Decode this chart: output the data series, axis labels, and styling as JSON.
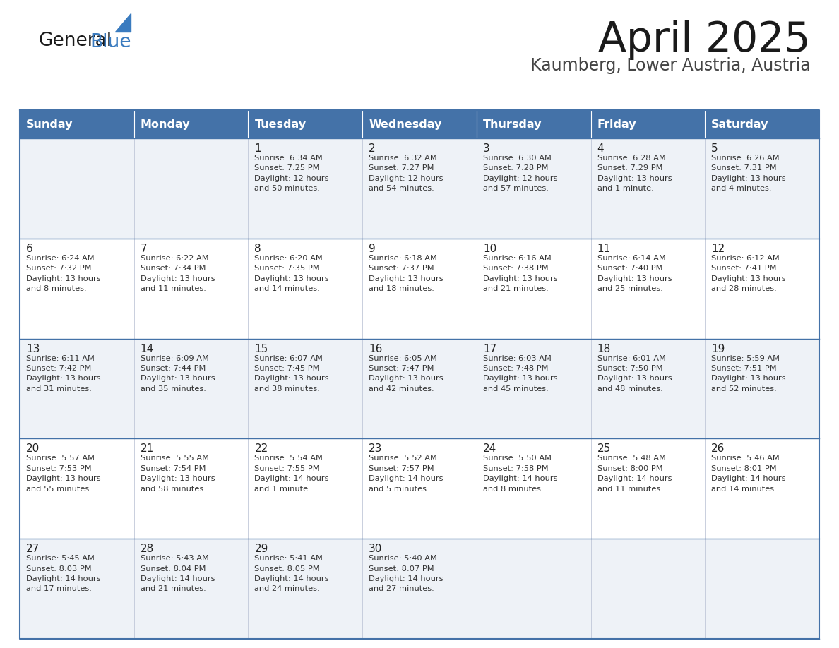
{
  "title": "April 2025",
  "subtitle": "Kaumberg, Lower Austria, Austria",
  "header_bg": "#4472a8",
  "header_text_color": "#ffffff",
  "day_names": [
    "Sunday",
    "Monday",
    "Tuesday",
    "Wednesday",
    "Thursday",
    "Friday",
    "Saturday"
  ],
  "row_bg_even": "#eef2f7",
  "row_bg_odd": "#ffffff",
  "cell_border_color": "#4472a8",
  "day_number_color": "#222222",
  "day_text_color": "#333333",
  "weeks": [
    [
      {
        "day": null,
        "text": ""
      },
      {
        "day": null,
        "text": ""
      },
      {
        "day": 1,
        "text": "Sunrise: 6:34 AM\nSunset: 7:25 PM\nDaylight: 12 hours\nand 50 minutes."
      },
      {
        "day": 2,
        "text": "Sunrise: 6:32 AM\nSunset: 7:27 PM\nDaylight: 12 hours\nand 54 minutes."
      },
      {
        "day": 3,
        "text": "Sunrise: 6:30 AM\nSunset: 7:28 PM\nDaylight: 12 hours\nand 57 minutes."
      },
      {
        "day": 4,
        "text": "Sunrise: 6:28 AM\nSunset: 7:29 PM\nDaylight: 13 hours\nand 1 minute."
      },
      {
        "day": 5,
        "text": "Sunrise: 6:26 AM\nSunset: 7:31 PM\nDaylight: 13 hours\nand 4 minutes."
      }
    ],
    [
      {
        "day": 6,
        "text": "Sunrise: 6:24 AM\nSunset: 7:32 PM\nDaylight: 13 hours\nand 8 minutes."
      },
      {
        "day": 7,
        "text": "Sunrise: 6:22 AM\nSunset: 7:34 PM\nDaylight: 13 hours\nand 11 minutes."
      },
      {
        "day": 8,
        "text": "Sunrise: 6:20 AM\nSunset: 7:35 PM\nDaylight: 13 hours\nand 14 minutes."
      },
      {
        "day": 9,
        "text": "Sunrise: 6:18 AM\nSunset: 7:37 PM\nDaylight: 13 hours\nand 18 minutes."
      },
      {
        "day": 10,
        "text": "Sunrise: 6:16 AM\nSunset: 7:38 PM\nDaylight: 13 hours\nand 21 minutes."
      },
      {
        "day": 11,
        "text": "Sunrise: 6:14 AM\nSunset: 7:40 PM\nDaylight: 13 hours\nand 25 minutes."
      },
      {
        "day": 12,
        "text": "Sunrise: 6:12 AM\nSunset: 7:41 PM\nDaylight: 13 hours\nand 28 minutes."
      }
    ],
    [
      {
        "day": 13,
        "text": "Sunrise: 6:11 AM\nSunset: 7:42 PM\nDaylight: 13 hours\nand 31 minutes."
      },
      {
        "day": 14,
        "text": "Sunrise: 6:09 AM\nSunset: 7:44 PM\nDaylight: 13 hours\nand 35 minutes."
      },
      {
        "day": 15,
        "text": "Sunrise: 6:07 AM\nSunset: 7:45 PM\nDaylight: 13 hours\nand 38 minutes."
      },
      {
        "day": 16,
        "text": "Sunrise: 6:05 AM\nSunset: 7:47 PM\nDaylight: 13 hours\nand 42 minutes."
      },
      {
        "day": 17,
        "text": "Sunrise: 6:03 AM\nSunset: 7:48 PM\nDaylight: 13 hours\nand 45 minutes."
      },
      {
        "day": 18,
        "text": "Sunrise: 6:01 AM\nSunset: 7:50 PM\nDaylight: 13 hours\nand 48 minutes."
      },
      {
        "day": 19,
        "text": "Sunrise: 5:59 AM\nSunset: 7:51 PM\nDaylight: 13 hours\nand 52 minutes."
      }
    ],
    [
      {
        "day": 20,
        "text": "Sunrise: 5:57 AM\nSunset: 7:53 PM\nDaylight: 13 hours\nand 55 minutes."
      },
      {
        "day": 21,
        "text": "Sunrise: 5:55 AM\nSunset: 7:54 PM\nDaylight: 13 hours\nand 58 minutes."
      },
      {
        "day": 22,
        "text": "Sunrise: 5:54 AM\nSunset: 7:55 PM\nDaylight: 14 hours\nand 1 minute."
      },
      {
        "day": 23,
        "text": "Sunrise: 5:52 AM\nSunset: 7:57 PM\nDaylight: 14 hours\nand 5 minutes."
      },
      {
        "day": 24,
        "text": "Sunrise: 5:50 AM\nSunset: 7:58 PM\nDaylight: 14 hours\nand 8 minutes."
      },
      {
        "day": 25,
        "text": "Sunrise: 5:48 AM\nSunset: 8:00 PM\nDaylight: 14 hours\nand 11 minutes."
      },
      {
        "day": 26,
        "text": "Sunrise: 5:46 AM\nSunset: 8:01 PM\nDaylight: 14 hours\nand 14 minutes."
      }
    ],
    [
      {
        "day": 27,
        "text": "Sunrise: 5:45 AM\nSunset: 8:03 PM\nDaylight: 14 hours\nand 17 minutes."
      },
      {
        "day": 28,
        "text": "Sunrise: 5:43 AM\nSunset: 8:04 PM\nDaylight: 14 hours\nand 21 minutes."
      },
      {
        "day": 29,
        "text": "Sunrise: 5:41 AM\nSunset: 8:05 PM\nDaylight: 14 hours\nand 24 minutes."
      },
      {
        "day": 30,
        "text": "Sunrise: 5:40 AM\nSunset: 8:07 PM\nDaylight: 14 hours\nand 27 minutes."
      },
      {
        "day": null,
        "text": ""
      },
      {
        "day": null,
        "text": ""
      },
      {
        "day": null,
        "text": ""
      }
    ]
  ],
  "logo_color_general": "#1a1a1a",
  "logo_color_blue": "#3a7bbf",
  "fig_width": 11.88,
  "fig_height": 9.18,
  "dpi": 100
}
